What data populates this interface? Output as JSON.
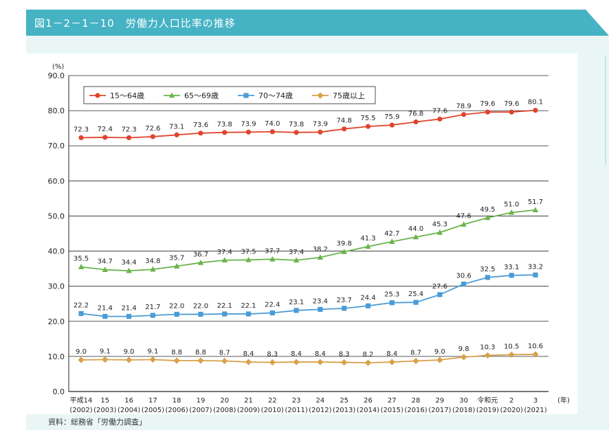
{
  "header": {
    "title": "図1－2－1－10　労働力人口比率の推移"
  },
  "footer": {
    "source": "資料：総務省「労働力調査」"
  },
  "chart_data": {
    "type": "line",
    "y_unit_label": "(%)",
    "x_unit_label": "(年)",
    "ylim": [
      0,
      90
    ],
    "yticks": [
      "0.0",
      "10.0",
      "20.0",
      "30.0",
      "40.0",
      "50.0",
      "60.0",
      "70.0",
      "80.0",
      "90.0"
    ],
    "categories": [
      {
        "label": "平成14",
        "sub": "(2002)"
      },
      {
        "label": "15",
        "sub": "(2003)"
      },
      {
        "label": "16",
        "sub": "(2004)"
      },
      {
        "label": "17",
        "sub": "(2005)"
      },
      {
        "label": "18",
        "sub": "(2006)"
      },
      {
        "label": "19",
        "sub": "(2007)"
      },
      {
        "label": "20",
        "sub": "(2008)"
      },
      {
        "label": "21",
        "sub": "(2009)"
      },
      {
        "label": "22",
        "sub": "(2010)"
      },
      {
        "label": "23",
        "sub": "(2011)"
      },
      {
        "label": "24",
        "sub": "(2012)"
      },
      {
        "label": "25",
        "sub": "(2013)"
      },
      {
        "label": "26",
        "sub": "(2014)"
      },
      {
        "label": "27",
        "sub": "(2015)"
      },
      {
        "label": "28",
        "sub": "(2016)"
      },
      {
        "label": "29",
        "sub": "(2017)"
      },
      {
        "label": "30",
        "sub": "(2018)"
      },
      {
        "label": "令和元",
        "sub": "(2019)"
      },
      {
        "label": "2",
        "sub": "(2020)"
      },
      {
        "label": "3",
        "sub": "(2021)"
      }
    ],
    "series": [
      {
        "name": "15～64歳",
        "color": "#e0442c",
        "marker": "circle",
        "values": [
          72.3,
          72.4,
          72.3,
          72.6,
          73.1,
          73.6,
          73.8,
          73.9,
          74.0,
          73.8,
          73.9,
          74.8,
          75.5,
          75.9,
          76.8,
          77.6,
          78.9,
          79.6,
          79.6,
          80.1
        ]
      },
      {
        "name": "65～69歳",
        "color": "#6ab44a",
        "marker": "triangle",
        "values": [
          35.5,
          34.7,
          34.4,
          34.8,
          35.7,
          36.7,
          37.4,
          37.5,
          37.7,
          37.4,
          38.2,
          39.8,
          41.3,
          42.7,
          44.0,
          45.3,
          47.6,
          49.5,
          51.0,
          51.7
        ]
      },
      {
        "name": "70～74歳",
        "color": "#4a9bd6",
        "marker": "square",
        "values": [
          22.2,
          21.4,
          21.4,
          21.7,
          22.0,
          22.0,
          22.1,
          22.1,
          22.4,
          23.1,
          23.4,
          23.7,
          24.4,
          25.3,
          25.4,
          27.6,
          30.6,
          32.5,
          33.1,
          33.2
        ]
      },
      {
        "name": "75歳以上",
        "color": "#d8a048",
        "marker": "diamond",
        "values": [
          9.0,
          9.1,
          9.0,
          9.1,
          8.8,
          8.8,
          8.7,
          8.4,
          8.3,
          8.4,
          8.4,
          8.3,
          8.2,
          8.4,
          8.7,
          9.0,
          9.8,
          10.3,
          10.5,
          10.6
        ]
      }
    ],
    "legend_position": "top-left",
    "grid": "horizontal"
  }
}
